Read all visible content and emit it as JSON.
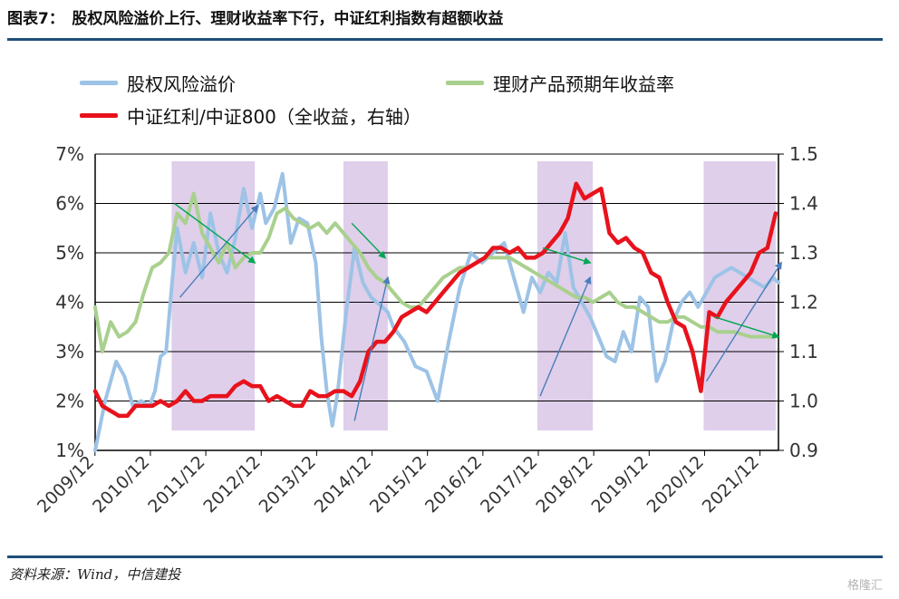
{
  "header": {
    "title": "图表7：　股权风险溢价上行、理财收益率下行，中证红利指数有超额收益"
  },
  "footer": {
    "source": "资料来源：Wind，中信建投",
    "watermark": "格隆汇"
  },
  "colors": {
    "erp": "#9dc3e6",
    "wmp": "#a9d08e",
    "dividend": "#e8121c",
    "shade": "#d9c7e6",
    "arrow_blue": "#4a7ebb",
    "arrow_green": "#00a651",
    "rule": "#1f4e79"
  },
  "chart_data": {
    "type": "line",
    "title": "",
    "x_tick_labels": [
      "2009/12",
      "2010/12",
      "2011/12",
      "2012/12",
      "2013/12",
      "2014/12",
      "2015/12",
      "2016/12",
      "2017/12",
      "2018/12",
      "2019/12",
      "2020/12",
      "2021/12"
    ],
    "x_range": [
      2009.92,
      2022.25
    ],
    "y_left": {
      "min": 1,
      "max": 7,
      "ticks": [
        "1%",
        "2%",
        "3%",
        "4%",
        "5%",
        "6%",
        "7%"
      ],
      "unit": "%"
    },
    "y_right": {
      "min": 0.9,
      "max": 1.5,
      "ticks": [
        "0.9",
        "1.0",
        "1.1",
        "1.2",
        "1.3",
        "1.4",
        "1.5"
      ]
    },
    "grid": "horizontal",
    "legend": [
      {
        "key": "erp",
        "label": "股权风险溢价"
      },
      {
        "key": "wmp",
        "label": "理财产品预期年收益率"
      },
      {
        "key": "dividend",
        "label": "中证红利/中证800（全收益，右轴）"
      }
    ],
    "shaded_periods": [
      {
        "start": 2011.3,
        "end": 2012.8
      },
      {
        "start": 2014.4,
        "end": 2015.2
      },
      {
        "start": 2017.9,
        "end": 2018.9
      },
      {
        "start": 2020.9,
        "end": 2022.2
      }
    ],
    "series": [
      {
        "key": "erp",
        "name": "股权风险溢价",
        "axis": "left",
        "x": [
          2009.92,
          2010.1,
          2010.3,
          2010.45,
          2010.6,
          2010.75,
          2010.9,
          2011.0,
          2011.1,
          2011.2,
          2011.3,
          2011.4,
          2011.55,
          2011.7,
          2011.85,
          2012.0,
          2012.15,
          2012.3,
          2012.45,
          2012.6,
          2012.75,
          2012.9,
          2013.0,
          2013.15,
          2013.3,
          2013.45,
          2013.6,
          2013.75,
          2013.9,
          2014.0,
          2014.1,
          2014.2,
          2014.3,
          2014.45,
          2014.6,
          2014.75,
          2014.9,
          2015.0,
          2015.1,
          2015.2,
          2015.3,
          2015.5,
          2015.7,
          2015.9,
          2016.1,
          2016.3,
          2016.5,
          2016.7,
          2016.9,
          2017.1,
          2017.3,
          2017.5,
          2017.65,
          2017.8,
          2017.95,
          2018.1,
          2018.25,
          2018.4,
          2018.55,
          2018.7,
          2018.85,
          2019.0,
          2019.15,
          2019.3,
          2019.45,
          2019.6,
          2019.75,
          2019.9,
          2020.05,
          2020.2,
          2020.35,
          2020.5,
          2020.65,
          2020.8,
          2020.9,
          2021.0,
          2021.1,
          2021.25,
          2021.4,
          2021.55,
          2021.7,
          2021.85,
          2022.0,
          2022.15,
          2022.25
        ],
        "values": [
          1.0,
          2.0,
          2.8,
          2.5,
          1.9,
          2.0,
          1.9,
          2.2,
          2.9,
          3.0,
          4.3,
          5.5,
          4.6,
          5.2,
          4.5,
          5.8,
          5.0,
          4.6,
          5.3,
          6.3,
          5.5,
          6.2,
          5.6,
          5.9,
          6.6,
          5.2,
          5.7,
          5.6,
          4.8,
          3.3,
          2.2,
          1.5,
          2.2,
          3.8,
          5.1,
          4.4,
          4.1,
          4.0,
          3.9,
          3.8,
          3.5,
          3.2,
          2.7,
          2.6,
          2.0,
          3.2,
          4.3,
          5.0,
          4.8,
          5.0,
          5.2,
          4.4,
          3.8,
          4.5,
          4.2,
          4.6,
          4.4,
          5.4,
          4.3,
          4.0,
          3.7,
          3.3,
          2.9,
          2.8,
          3.4,
          3.0,
          4.1,
          3.9,
          2.4,
          2.8,
          3.6,
          4.0,
          4.2,
          3.9,
          4.1,
          4.3,
          4.5,
          4.6,
          4.7,
          4.6,
          4.5,
          4.4,
          4.3,
          4.5,
          4.4
        ]
      },
      {
        "key": "wmp",
        "name": "理财产品预期年收益率",
        "axis": "left",
        "x": [
          2009.92,
          2010.05,
          2010.2,
          2010.35,
          2010.5,
          2010.65,
          2010.8,
          2010.95,
          2011.1,
          2011.25,
          2011.4,
          2011.55,
          2011.7,
          2011.85,
          2012.0,
          2012.15,
          2012.3,
          2012.45,
          2012.6,
          2012.75,
          2012.9,
          2013.05,
          2013.2,
          2013.35,
          2013.5,
          2013.65,
          2013.8,
          2013.95,
          2014.1,
          2014.25,
          2014.4,
          2014.55,
          2014.7,
          2014.85,
          2015.0,
          2015.15,
          2015.3,
          2015.45,
          2015.6,
          2015.75,
          2015.9,
          2016.05,
          2016.2,
          2016.35,
          2016.5,
          2016.65,
          2016.8,
          2016.95,
          2017.1,
          2017.25,
          2017.4,
          2017.55,
          2017.7,
          2017.85,
          2018.0,
          2018.15,
          2018.3,
          2018.45,
          2018.6,
          2018.75,
          2018.9,
          2019.05,
          2019.2,
          2019.35,
          2019.5,
          2019.65,
          2019.8,
          2019.95,
          2020.1,
          2020.25,
          2020.4,
          2020.55,
          2020.7,
          2020.85,
          2021.0,
          2021.15,
          2021.3,
          2021.45,
          2021.6,
          2021.75,
          2021.9,
          2022.05,
          2022.2
        ],
        "values": [
          3.9,
          3.0,
          3.6,
          3.3,
          3.4,
          3.6,
          4.2,
          4.7,
          4.8,
          5.0,
          5.8,
          5.6,
          6.2,
          5.4,
          5.1,
          4.8,
          5.2,
          4.7,
          4.9,
          5.0,
          5.0,
          5.3,
          5.8,
          5.9,
          5.7,
          5.6,
          5.5,
          5.6,
          5.4,
          5.6,
          5.4,
          5.2,
          5.0,
          4.7,
          4.5,
          4.4,
          4.2,
          4.0,
          3.9,
          3.9,
          4.1,
          4.3,
          4.5,
          4.6,
          4.7,
          4.7,
          4.8,
          4.9,
          4.9,
          4.9,
          4.9,
          4.8,
          4.7,
          4.6,
          4.5,
          4.4,
          4.3,
          4.2,
          4.1,
          4.1,
          4.0,
          4.1,
          4.2,
          4.0,
          3.9,
          3.9,
          3.8,
          3.7,
          3.6,
          3.6,
          3.7,
          3.7,
          3.6,
          3.5,
          3.5,
          3.4,
          3.4,
          3.4,
          3.35,
          3.3,
          3.3,
          3.3,
          3.3
        ]
      },
      {
        "key": "dividend",
        "name": "中证红利/中证800（全收益，右轴）",
        "axis": "right",
        "x": [
          2009.92,
          2010.05,
          2010.2,
          2010.35,
          2010.5,
          2010.65,
          2010.8,
          2010.95,
          2011.1,
          2011.25,
          2011.4,
          2011.55,
          2011.7,
          2011.85,
          2012.0,
          2012.15,
          2012.3,
          2012.45,
          2012.6,
          2012.75,
          2012.9,
          2013.05,
          2013.2,
          2013.35,
          2013.5,
          2013.65,
          2013.8,
          2013.95,
          2014.1,
          2014.25,
          2014.4,
          2014.55,
          2014.7,
          2014.85,
          2015.0,
          2015.15,
          2015.3,
          2015.45,
          2015.6,
          2015.75,
          2015.9,
          2016.05,
          2016.2,
          2016.35,
          2016.5,
          2016.65,
          2016.8,
          2016.95,
          2017.1,
          2017.25,
          2017.4,
          2017.55,
          2017.7,
          2017.85,
          2018.0,
          2018.15,
          2018.3,
          2018.45,
          2018.6,
          2018.75,
          2018.9,
          2019.05,
          2019.2,
          2019.35,
          2019.5,
          2019.65,
          2019.8,
          2019.95,
          2020.1,
          2020.25,
          2020.4,
          2020.55,
          2020.7,
          2020.85,
          2021.0,
          2021.15,
          2021.3,
          2021.45,
          2021.6,
          2021.75,
          2021.9,
          2022.05,
          2022.2
        ],
        "values": [
          1.02,
          0.99,
          0.98,
          0.97,
          0.97,
          0.99,
          0.99,
          0.99,
          1.0,
          0.99,
          1.0,
          1.02,
          1.0,
          1.0,
          1.01,
          1.01,
          1.01,
          1.03,
          1.04,
          1.03,
          1.03,
          1.0,
          1.01,
          1.0,
          0.99,
          0.99,
          1.02,
          1.01,
          1.01,
          1.02,
          1.02,
          1.01,
          1.04,
          1.1,
          1.12,
          1.12,
          1.14,
          1.17,
          1.18,
          1.19,
          1.18,
          1.2,
          1.22,
          1.24,
          1.26,
          1.27,
          1.28,
          1.29,
          1.31,
          1.31,
          1.3,
          1.31,
          1.29,
          1.29,
          1.3,
          1.32,
          1.34,
          1.37,
          1.44,
          1.41,
          1.42,
          1.43,
          1.34,
          1.32,
          1.33,
          1.31,
          1.3,
          1.26,
          1.25,
          1.2,
          1.16,
          1.15,
          1.1,
          1.02,
          1.18,
          1.17,
          1.2,
          1.22,
          1.24,
          1.26,
          1.3,
          1.31,
          1.38
        ]
      }
    ],
    "arrows": [
      {
        "color": "blue",
        "from": [
          2011.45,
          4.1
        ],
        "to": [
          2012.85,
          5.95
        ]
      },
      {
        "color": "green",
        "from": [
          2011.35,
          6.0
        ],
        "to": [
          2012.8,
          4.8
        ]
      },
      {
        "color": "blue",
        "from": [
          2014.6,
          1.6
        ],
        "to": [
          2015.2,
          4.5
        ]
      },
      {
        "color": "green",
        "from": [
          2014.55,
          5.6
        ],
        "to": [
          2015.15,
          4.9
        ]
      },
      {
        "color": "blue",
        "from": [
          2017.95,
          2.1
        ],
        "to": [
          2018.85,
          4.5
        ]
      },
      {
        "color": "green",
        "from": [
          2018.0,
          5.1
        ],
        "to": [
          2018.85,
          4.8
        ]
      },
      {
        "color": "blue",
        "from": [
          2020.95,
          2.4
        ],
        "to": [
          2022.3,
          4.8
        ]
      },
      {
        "color": "green",
        "from": [
          2021.1,
          3.7
        ],
        "to": [
          2022.25,
          3.3
        ]
      }
    ]
  }
}
